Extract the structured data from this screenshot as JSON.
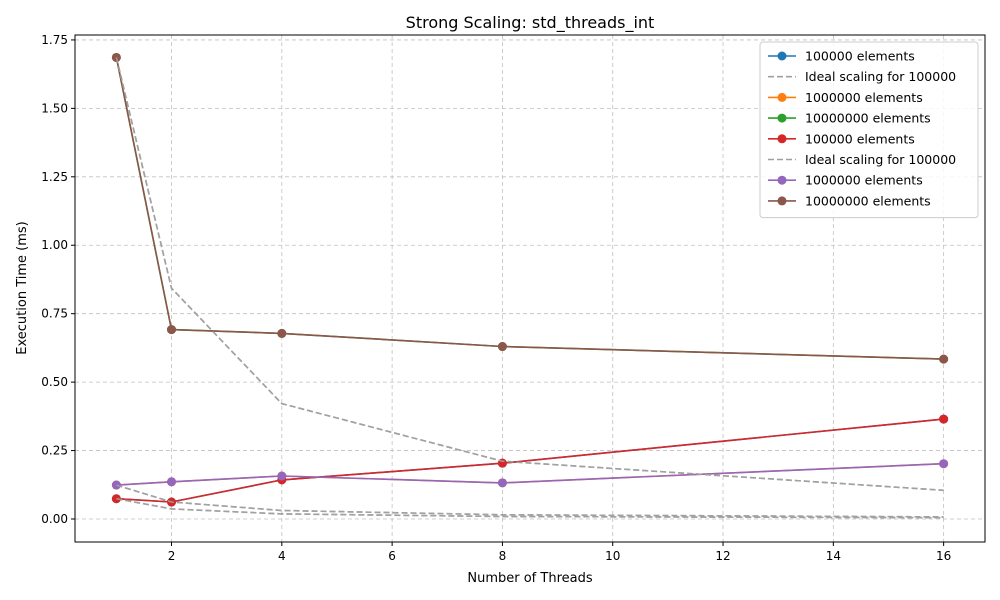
{
  "chart_data": {
    "type": "line",
    "title": "Strong Scaling: std_threads_int",
    "xlabel": "Number of Threads",
    "ylabel": "Execution Time (ms)",
    "xlim": [
      0.25,
      16.75
    ],
    "ylim": [
      -0.084,
      1.768
    ],
    "xticks": [
      2,
      4,
      6,
      8,
      10,
      12,
      14,
      16
    ],
    "xtick_labels": [
      "2",
      "4",
      "6",
      "8",
      "10",
      "12",
      "14",
      "16"
    ],
    "yticks": [
      0.0,
      0.25,
      0.5,
      0.75,
      1.0,
      1.25,
      1.5,
      1.75
    ],
    "ytick_labels": [
      "0.00",
      "0.25",
      "0.50",
      "0.75",
      "1.00",
      "1.25",
      "1.50",
      "1.75"
    ],
    "grid": true,
    "legend_position": "top-right",
    "x": [
      1,
      2,
      4,
      8,
      16
    ],
    "series": [
      {
        "name": "100000 elements",
        "color": "#1f77b4",
        "style": "line-marker",
        "values": [
          0.074,
          0.062,
          0.143,
          0.204,
          0.365
        ]
      },
      {
        "name": "Ideal scaling for 100000",
        "color": "#a0a0a0",
        "style": "dashed",
        "values": [
          0.074,
          0.037,
          0.0185,
          0.00925,
          0.0046
        ]
      },
      {
        "name": "1000000 elements",
        "color": "#ff7f0e",
        "style": "line-marker",
        "values": [
          0.124,
          0.136,
          0.157,
          0.132,
          0.202
        ]
      },
      {
        "name": "",
        "color": "#a0a0a0",
        "style": "dashed",
        "values": [
          0.124,
          0.062,
          0.031,
          0.0155,
          0.00775
        ]
      },
      {
        "name": "10000000 elements",
        "color": "#2ca02c",
        "style": "line-marker",
        "values": [
          1.686,
          0.692,
          0.678,
          0.63,
          0.584
        ]
      },
      {
        "name": "",
        "color": "#a0a0a0",
        "style": "dashed",
        "values": [
          1.686,
          0.843,
          0.4215,
          0.211,
          0.105
        ]
      },
      {
        "name": "100000 elements",
        "color": "#d62728",
        "style": "line-marker",
        "values": [
          0.074,
          0.062,
          0.143,
          0.204,
          0.365
        ]
      },
      {
        "name": "Ideal scaling for 100000",
        "color": "#a0a0a0",
        "style": "dashed",
        "values": [
          0.074,
          0.037,
          0.0185,
          0.00925,
          0.0046
        ]
      },
      {
        "name": "1000000 elements",
        "color": "#9467bd",
        "style": "line-marker",
        "values": [
          0.124,
          0.136,
          0.157,
          0.132,
          0.202
        ]
      },
      {
        "name": "",
        "color": "#a0a0a0",
        "style": "dashed",
        "values": [
          0.124,
          0.062,
          0.031,
          0.0155,
          0.00775
        ]
      },
      {
        "name": "10000000 elements",
        "color": "#8c564b",
        "style": "line-marker",
        "values": [
          1.686,
          0.692,
          0.678,
          0.63,
          0.584
        ]
      },
      {
        "name": "",
        "color": "#a0a0a0",
        "style": "dashed",
        "values": [
          1.686,
          0.843,
          0.4215,
          0.211,
          0.105
        ]
      }
    ]
  }
}
